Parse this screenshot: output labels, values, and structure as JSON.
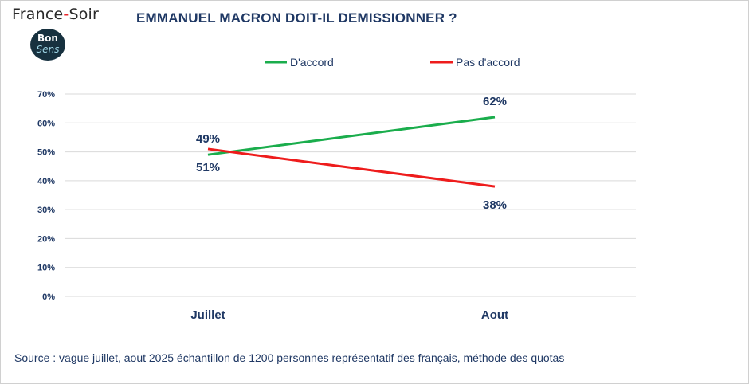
{
  "brand": {
    "name_part1": "France",
    "name_sep": "-",
    "name_part2": "Soir",
    "badge_line1": "Bon",
    "badge_line2": "Sens"
  },
  "colors": {
    "d_accord": "#1aad4c",
    "pas_d_accord": "#ee1c1c",
    "text": "#1f3864",
    "grid": "#d9d9d9"
  },
  "chart_data": {
    "type": "line",
    "title": "EMMANUEL MACRON DOIT-IL DEMISSIONNER ?",
    "categories": [
      "Juillet",
      "Aout"
    ],
    "series": [
      {
        "name": "D'accord",
        "values": [
          49,
          62
        ],
        "labels": [
          "49%",
          "62%"
        ]
      },
      {
        "name": "Pas d'accord",
        "values": [
          51,
          38
        ],
        "labels": [
          "51%",
          "38%"
        ]
      }
    ],
    "ylim": [
      0,
      70
    ],
    "yticks": [
      "0%",
      "10%",
      "20%",
      "30%",
      "40%",
      "50%",
      "60%",
      "70%"
    ],
    "grid": true,
    "legend_position": "top"
  },
  "source": "Source : vague juillet, aout  2025 échantillon de 1200 personnes représentatif des français, méthode des quotas"
}
